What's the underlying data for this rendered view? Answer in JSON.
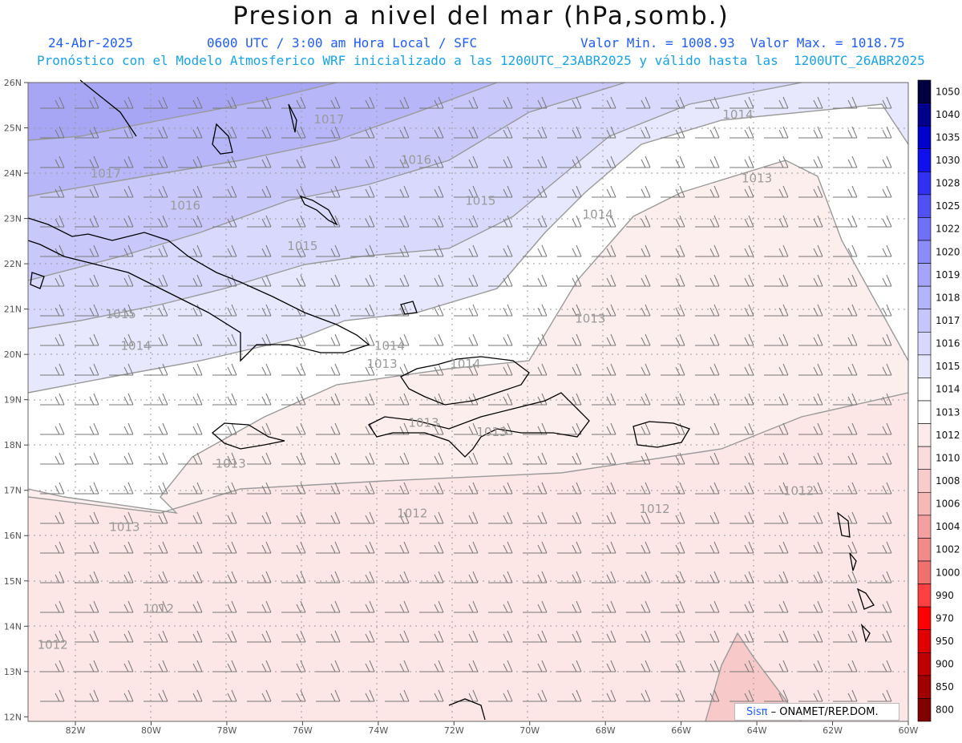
{
  "header": {
    "title": "Presion a nivel del mar (hPa,somb.)",
    "date": "24-Abr-2025",
    "time": "0600 UTC / 3:00 am Hora Local / SFC",
    "min_max": "Valor Min. = 1008.93  Valor Max. = 1018.75",
    "model_line": "Pronóstico con el Modelo Atmosferico WRF inicializado a las 1200UTC_23ABR2025 y válido hasta las  1200UTC_26ABR2025"
  },
  "map": {
    "lat_labels": [
      "26N",
      "25N",
      "24N",
      "23N",
      "22N",
      "21N",
      "20N",
      "19N",
      "18N",
      "17N",
      "16N",
      "15N",
      "14N",
      "13N",
      "12N"
    ],
    "lon_labels": [
      "82W",
      "80W",
      "78W",
      "76W",
      "74W",
      "72W",
      "70W",
      "68W",
      "66W",
      "64W",
      "62W",
      "60W"
    ],
    "isobar_labels": [
      {
        "text": "1017",
        "lon": -75.3,
        "lat": 25.1
      },
      {
        "text": "1016",
        "lon": -73.0,
        "lat": 24.2
      },
      {
        "text": "1015",
        "lon": -71.3,
        "lat": 23.3
      },
      {
        "text": "1014",
        "lon": -68.2,
        "lat": 23.0
      },
      {
        "text": "1014",
        "lon": -64.5,
        "lat": 25.2
      },
      {
        "text": "1013",
        "lon": -64.0,
        "lat": 23.8
      },
      {
        "text": "1017",
        "lon": -81.2,
        "lat": 23.9
      },
      {
        "text": "1016",
        "lon": -79.1,
        "lat": 23.2
      },
      {
        "text": "1015",
        "lon": -76.0,
        "lat": 22.3
      },
      {
        "text": "1015",
        "lon": -80.8,
        "lat": 20.8
      },
      {
        "text": "1014",
        "lon": -80.4,
        "lat": 20.1
      },
      {
        "text": "1014",
        "lon": -73.7,
        "lat": 20.1
      },
      {
        "text": "1013",
        "lon": -73.9,
        "lat": 19.7
      },
      {
        "text": "1014",
        "lon": -71.7,
        "lat": 19.7
      },
      {
        "text": "1013",
        "lon": -72.8,
        "lat": 18.4
      },
      {
        "text": "1013",
        "lon": -71.0,
        "lat": 18.2
      },
      {
        "text": "1013",
        "lon": -77.9,
        "lat": 17.5
      },
      {
        "text": "1013",
        "lon": -68.4,
        "lat": 20.7
      },
      {
        "text": "1013",
        "lon": -80.7,
        "lat": 16.1
      },
      {
        "text": "1012",
        "lon": -73.1,
        "lat": 16.4
      },
      {
        "text": "1012",
        "lon": -66.7,
        "lat": 16.5
      },
      {
        "text": "1012",
        "lon": -62.9,
        "lat": 16.9
      },
      {
        "text": "1012",
        "lon": -79.8,
        "lat": 14.3
      },
      {
        "text": "1012",
        "lon": -82.6,
        "lat": 13.5
      }
    ],
    "colorbar": {
      "levels": [
        "1050",
        "1040",
        "1035",
        "1030",
        "1028",
        "1025",
        "1022",
        "1020",
        "1019",
        "1018",
        "1017",
        "1016",
        "1015",
        "1014",
        "1013",
        "1012",
        "1010",
        "1008",
        "1006",
        "1004",
        "1002",
        "1000",
        "990",
        "970",
        "950",
        "900",
        "850",
        "800"
      ],
      "colors": [
        "#000040",
        "#00008b",
        "#0000cd",
        "#1010ee",
        "#3030f2",
        "#5050f4",
        "#7070f6",
        "#8c8cf8",
        "#a4a4fa",
        "#b4b4fb",
        "#c6c6fc",
        "#d8d8fd",
        "#e6e6fe",
        "#ffffff",
        "#ffffff",
        "#fdeaea",
        "#fbdcdc",
        "#f9cccc",
        "#f7b8b8",
        "#f5a0a0",
        "#f38a8a",
        "#f07070",
        "#ff4040",
        "#ff0000",
        "#e00000",
        "#c00000",
        "#a00000",
        "#800000"
      ]
    },
    "credit_sis": "Sisπ",
    "credit_text": " – ONAMET/REP.DOM."
  }
}
